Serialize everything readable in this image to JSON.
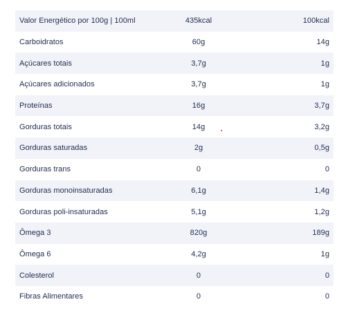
{
  "table": {
    "rows": [
      {
        "name": "Valor Energético por 100g | 100ml",
        "per100": "435kcal",
        "portion": "100kcal"
      },
      {
        "name": "Carboidratos",
        "per100": "60g",
        "portion": "14g"
      },
      {
        "name": "Açúcares totais",
        "per100": "3,7g",
        "portion": "1g"
      },
      {
        "name": "Açúcares adicionados",
        "per100": "3,7g",
        "portion": "1g"
      },
      {
        "name": "Proteínas",
        "per100": "16g",
        "portion": "3,7g"
      },
      {
        "name": "Gorduras totais",
        "per100": "14g",
        "portion": "3,2g"
      },
      {
        "name": "Gorduras saturadas",
        "per100": "2g",
        "portion": "0,5g"
      },
      {
        "name": "Gorduras trans",
        "per100": "0",
        "portion": "0"
      },
      {
        "name": "Gorduras monoinsaturadas",
        "per100": "6,1g",
        "portion": "1,4g"
      },
      {
        "name": "Gorduras poli-insaturadas",
        "per100": "5,1g",
        "portion": "1,2g"
      },
      {
        "name": "Ômega 3",
        "per100": "820g",
        "portion": "189g"
      },
      {
        "name": "Ômega 6",
        "per100": "4,2g",
        "portion": "1g"
      },
      {
        "name": "Colesterol",
        "per100": "0",
        "portion": "0"
      },
      {
        "name": "Fibras Alimentares",
        "per100": "0",
        "portion": "0"
      }
    ]
  },
  "colors": {
    "text": "#1f2a4d",
    "row_shade": "#f1f3f9",
    "dot": "#e0322b"
  }
}
